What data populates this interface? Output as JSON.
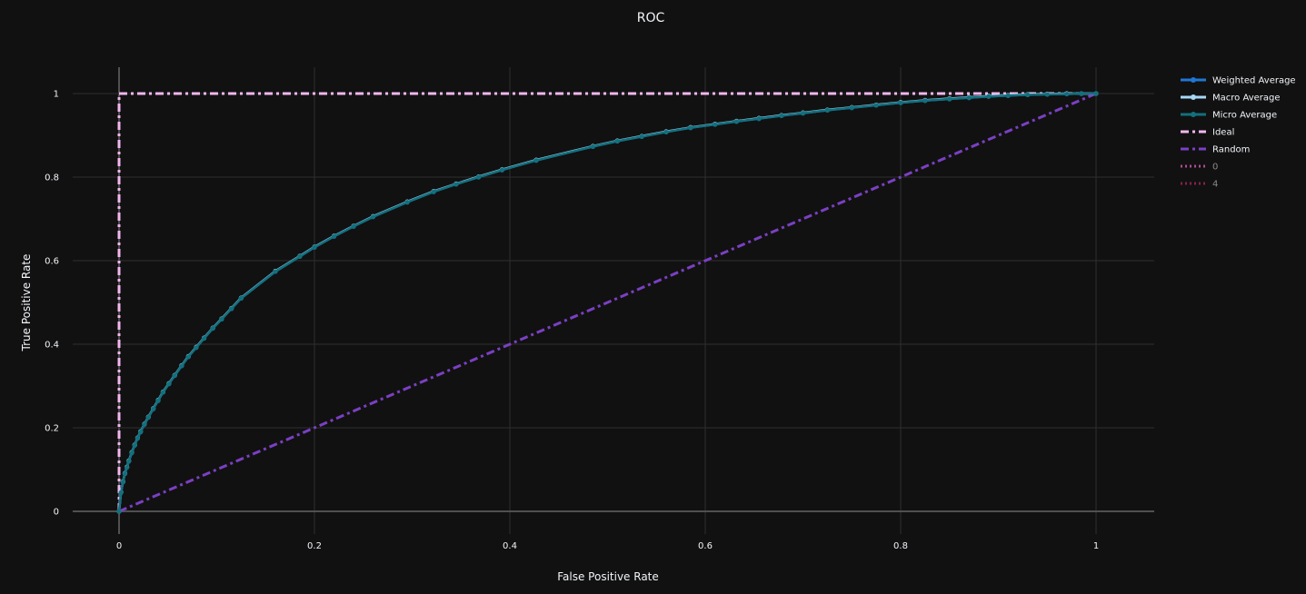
{
  "chart_data": {
    "type": "line",
    "title": "ROC",
    "xlabel": "False Positive Rate",
    "ylabel": "True Positive Rate",
    "xlim": [
      -0.07,
      1.06
    ],
    "ylim": [
      -0.005,
      1.065
    ],
    "xticks": [
      0,
      0.2,
      0.4,
      0.6,
      0.8,
      1
    ],
    "xtick_labels": [
      "0",
      "0.2",
      "0.4",
      "0.6",
      "0.8",
      "1"
    ],
    "yticks": [
      0,
      0.2,
      0.4,
      0.6,
      0.8,
      1
    ],
    "ytick_labels": [
      "0",
      "0.2",
      "0.4",
      "0.6",
      "0.8",
      "1"
    ],
    "grid": true,
    "legend_position": "right",
    "series": [
      {
        "name": "Weighted Average",
        "color": "#1f77d4",
        "style": "solid",
        "markers": true,
        "x": [
          0,
          0.002,
          0.004,
          0.006,
          0.008,
          0.01,
          0.013,
          0.016,
          0.019,
          0.022,
          0.026,
          0.03,
          0.035,
          0.04,
          0.045,
          0.051,
          0.057,
          0.064,
          0.071,
          0.079,
          0.087,
          0.096,
          0.105,
          0.115,
          0.125,
          0.16,
          0.185,
          0.2,
          0.22,
          0.24,
          0.26,
          0.295,
          0.322,
          0.345,
          0.368,
          0.392,
          0.427,
          0.485,
          0.51,
          0.535,
          0.56,
          0.585,
          0.61,
          0.632,
          0.655,
          0.678,
          0.7,
          0.725,
          0.75,
          0.775,
          0.8,
          0.825,
          0.85,
          0.87,
          0.89,
          0.91,
          0.93,
          0.95,
          0.97,
          0.985,
          1
        ],
        "y": [
          0,
          0.045,
          0.07,
          0.09,
          0.105,
          0.12,
          0.14,
          0.158,
          0.175,
          0.19,
          0.208,
          0.225,
          0.245,
          0.265,
          0.285,
          0.305,
          0.325,
          0.348,
          0.37,
          0.392,
          0.414,
          0.438,
          0.46,
          0.485,
          0.51,
          0.574,
          0.61,
          0.632,
          0.658,
          0.682,
          0.705,
          0.74,
          0.765,
          0.783,
          0.8,
          0.817,
          0.84,
          0.873,
          0.886,
          0.897,
          0.908,
          0.918,
          0.926,
          0.933,
          0.94,
          0.947,
          0.953,
          0.96,
          0.966,
          0.972,
          0.978,
          0.983,
          0.987,
          0.99,
          0.993,
          0.995,
          0.997,
          0.998,
          0.999,
          1,
          1
        ]
      },
      {
        "name": "Macro Average",
        "color": "#a6d8f5",
        "style": "solid",
        "markers": true,
        "x": [
          0,
          0.002,
          0.004,
          0.006,
          0.008,
          0.01,
          0.013,
          0.016,
          0.019,
          0.022,
          0.026,
          0.03,
          0.035,
          0.04,
          0.045,
          0.051,
          0.057,
          0.064,
          0.071,
          0.079,
          0.087,
          0.096,
          0.105,
          0.115,
          0.125,
          0.16,
          0.185,
          0.2,
          0.22,
          0.24,
          0.26,
          0.295,
          0.322,
          0.345,
          0.368,
          0.392,
          0.427,
          0.485,
          0.51,
          0.535,
          0.56,
          0.585,
          0.61,
          0.632,
          0.655,
          0.678,
          0.7,
          0.725,
          0.75,
          0.775,
          0.8,
          0.825,
          0.85,
          0.87,
          0.89,
          0.91,
          0.93,
          0.95,
          0.97,
          0.985,
          1
        ],
        "y": [
          0,
          0.046,
          0.071,
          0.091,
          0.106,
          0.121,
          0.141,
          0.159,
          0.176,
          0.191,
          0.209,
          0.226,
          0.246,
          0.266,
          0.286,
          0.306,
          0.326,
          0.349,
          0.371,
          0.393,
          0.415,
          0.439,
          0.461,
          0.486,
          0.511,
          0.575,
          0.611,
          0.633,
          0.659,
          0.683,
          0.706,
          0.741,
          0.766,
          0.784,
          0.801,
          0.818,
          0.841,
          0.874,
          0.887,
          0.898,
          0.909,
          0.919,
          0.927,
          0.934,
          0.941,
          0.948,
          0.954,
          0.961,
          0.967,
          0.973,
          0.979,
          0.984,
          0.988,
          0.991,
          0.994,
          0.996,
          0.998,
          0.999,
          1,
          1,
          1
        ]
      },
      {
        "name": "Micro Average",
        "color": "#12707e",
        "style": "solid",
        "markers": true,
        "x": [
          0,
          0.002,
          0.004,
          0.006,
          0.008,
          0.01,
          0.013,
          0.016,
          0.019,
          0.022,
          0.026,
          0.03,
          0.035,
          0.04,
          0.045,
          0.051,
          0.057,
          0.064,
          0.071,
          0.079,
          0.087,
          0.096,
          0.105,
          0.115,
          0.125,
          0.16,
          0.185,
          0.2,
          0.22,
          0.24,
          0.26,
          0.295,
          0.322,
          0.345,
          0.368,
          0.392,
          0.427,
          0.485,
          0.51,
          0.535,
          0.56,
          0.585,
          0.61,
          0.632,
          0.655,
          0.678,
          0.7,
          0.725,
          0.75,
          0.775,
          0.8,
          0.825,
          0.85,
          0.87,
          0.89,
          0.91,
          0.93,
          0.95,
          0.97,
          0.985,
          1
        ],
        "y": [
          0,
          0.045,
          0.07,
          0.09,
          0.105,
          0.12,
          0.14,
          0.158,
          0.175,
          0.19,
          0.208,
          0.225,
          0.245,
          0.265,
          0.285,
          0.305,
          0.325,
          0.348,
          0.37,
          0.392,
          0.414,
          0.438,
          0.46,
          0.485,
          0.51,
          0.574,
          0.61,
          0.632,
          0.658,
          0.682,
          0.705,
          0.74,
          0.765,
          0.783,
          0.8,
          0.817,
          0.84,
          0.873,
          0.886,
          0.897,
          0.908,
          0.918,
          0.926,
          0.933,
          0.94,
          0.947,
          0.953,
          0.96,
          0.966,
          0.972,
          0.978,
          0.983,
          0.987,
          0.99,
          0.993,
          0.995,
          0.997,
          0.998,
          0.999,
          1,
          1
        ]
      },
      {
        "name": "Ideal",
        "color": "#f4b6ef",
        "style": "dashdot",
        "markers": false,
        "x": [
          0,
          0,
          1
        ],
        "y": [
          0,
          1,
          1
        ]
      },
      {
        "name": "Random",
        "color": "#7b3fc4",
        "style": "dashdot",
        "markers": false,
        "x": [
          0,
          1
        ],
        "y": [
          0,
          1
        ]
      },
      {
        "name": "0",
        "color": "#b04a92",
        "style": "dot",
        "markers": false,
        "legend_only": true,
        "x": [],
        "y": []
      },
      {
        "name": "4",
        "color": "#8a1f4e",
        "style": "dot",
        "markers": false,
        "legend_only": true,
        "x": [],
        "y": []
      }
    ]
  }
}
